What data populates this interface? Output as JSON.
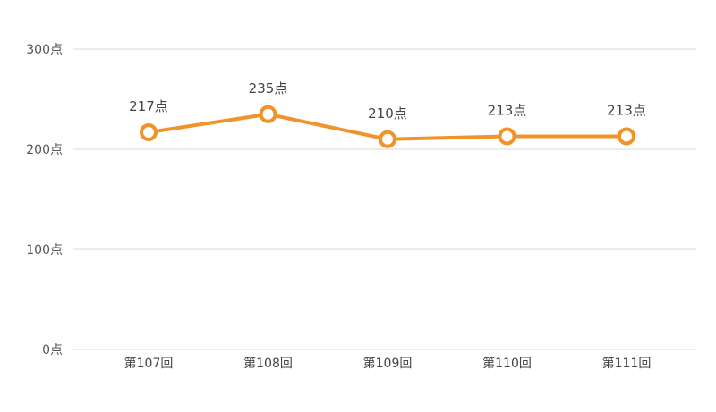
{
  "colors": {
    "line": "#f0932b",
    "marker_fill": "#ffffff",
    "grid": "#d9d9d9",
    "text": "#555555"
  },
  "chart_data": {
    "type": "line",
    "categories": [
      "第107回",
      "第108回",
      "第109回",
      "第110回",
      "第111回"
    ],
    "series": [
      {
        "values": [
          217,
          235,
          210,
          213,
          213
        ],
        "data_labels": [
          "217点",
          "235点",
          "210点",
          "213点",
          "213点"
        ]
      }
    ],
    "ylim": [
      0,
      300
    ],
    "y_ticks": [
      0,
      100,
      200,
      300
    ],
    "y_tick_labels": [
      "0点",
      "100点",
      "200点",
      "300点"
    ],
    "grid": true,
    "legend": "none",
    "marker": "hollow-circle"
  }
}
